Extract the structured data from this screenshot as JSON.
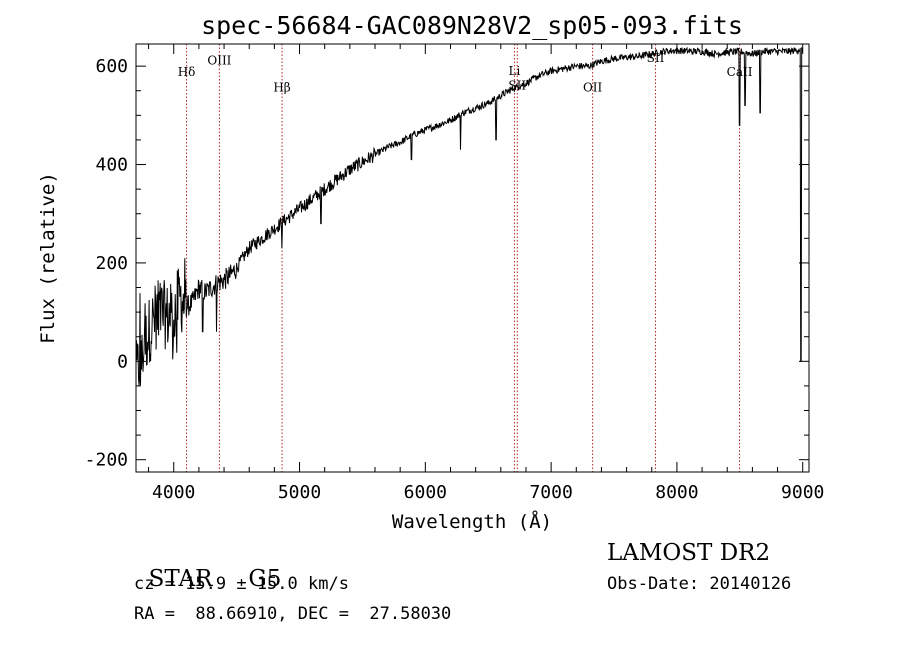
{
  "chart_data": {
    "type": "line",
    "title": "spec-56684-GAC089N28V2_sp05-093.fits",
    "xlabel": "Wavelength (Å)",
    "ylabel": "Flux (relative)",
    "xlim": [
      3700,
      9050
    ],
    "ylim": [
      -225,
      645
    ],
    "xticks": [
      4000,
      5000,
      6000,
      7000,
      8000,
      9000
    ],
    "yticks": [
      -200,
      0,
      200,
      400,
      600
    ],
    "grid": false,
    "series": [
      {
        "color": "#000000",
        "x": [
          3700,
          3750,
          3800,
          3850,
          3900,
          3950,
          4000,
          4050,
          4100,
          4150,
          4200,
          4250,
          4300,
          4350,
          4400,
          4450,
          4500,
          4550,
          4600,
          4650,
          4700,
          4750,
          4800,
          4850,
          4900,
          4950,
          5000,
          5100,
          5200,
          5300,
          5400,
          5500,
          5600,
          5700,
          5800,
          5900,
          6000,
          6100,
          6200,
          6300,
          6400,
          6500,
          6600,
          6700,
          6800,
          6900,
          7000,
          7100,
          7200,
          7300,
          7400,
          7500,
          7600,
          7700,
          7800,
          7900,
          8000,
          8100,
          8200,
          8300,
          8400,
          8500,
          8600,
          8700,
          8800,
          8900,
          9000
        ],
        "y": [
          -30,
          20,
          60,
          90,
          100,
          90,
          100,
          130,
          110,
          120,
          150,
          140,
          150,
          160,
          165,
          175,
          190,
          210,
          230,
          240,
          250,
          260,
          270,
          280,
          290,
          300,
          310,
          330,
          350,
          370,
          390,
          405,
          420,
          435,
          445,
          460,
          470,
          480,
          490,
          505,
          515,
          525,
          540,
          555,
          565,
          580,
          590,
          595,
          600,
          600,
          610,
          615,
          618,
          620,
          625,
          630,
          632,
          630,
          630,
          625,
          628,
          630,
          625,
          630,
          630,
          630,
          635
        ]
      }
    ],
    "absorption_dips": [
      {
        "x": 4230,
        "y": 60
      },
      {
        "x": 4340,
        "y": 60
      },
      {
        "x": 4860,
        "y": 230
      },
      {
        "x": 5170,
        "y": 280
      },
      {
        "x": 5890,
        "y": 410
      },
      {
        "x": 6280,
        "y": 430
      },
      {
        "x": 6563,
        "y": 450
      },
      {
        "x": 8498,
        "y": 480
      },
      {
        "x": 8542,
        "y": 520
      },
      {
        "x": 8662,
        "y": 505
      },
      {
        "x": 8985,
        "y": 0
      }
    ],
    "lines": [
      {
        "label": "Hδ",
        "x": 4102,
        "label_y": 580
      },
      {
        "label": "OIII",
        "x": 4363,
        "label_y": 603
      },
      {
        "label": "Hβ",
        "x": 4861,
        "label_y": 548
      },
      {
        "label": "Li",
        "x": 6708,
        "label_y": 582
      },
      {
        "label": "SII",
        "x": 6731,
        "label_y": 553
      },
      {
        "label": "OII",
        "x": 7330,
        "label_y": 548
      },
      {
        "label": "SII",
        "x": 7830,
        "label_y": 608
      },
      {
        "label": "CaII",
        "x": 8498,
        "label_y": 580
      }
    ]
  },
  "info": {
    "class_label": "STAR",
    "subclass": "G5",
    "survey": "LAMOST DR2",
    "cz": "cz = 15.9 ± 15.0 km/s",
    "obs_date": "Obs-Date: 20140126",
    "radec": "RA =  88.66910, DEC =  27.58030"
  },
  "colors": {
    "line_marker": "#b22222",
    "spectrum": "#000000"
  }
}
